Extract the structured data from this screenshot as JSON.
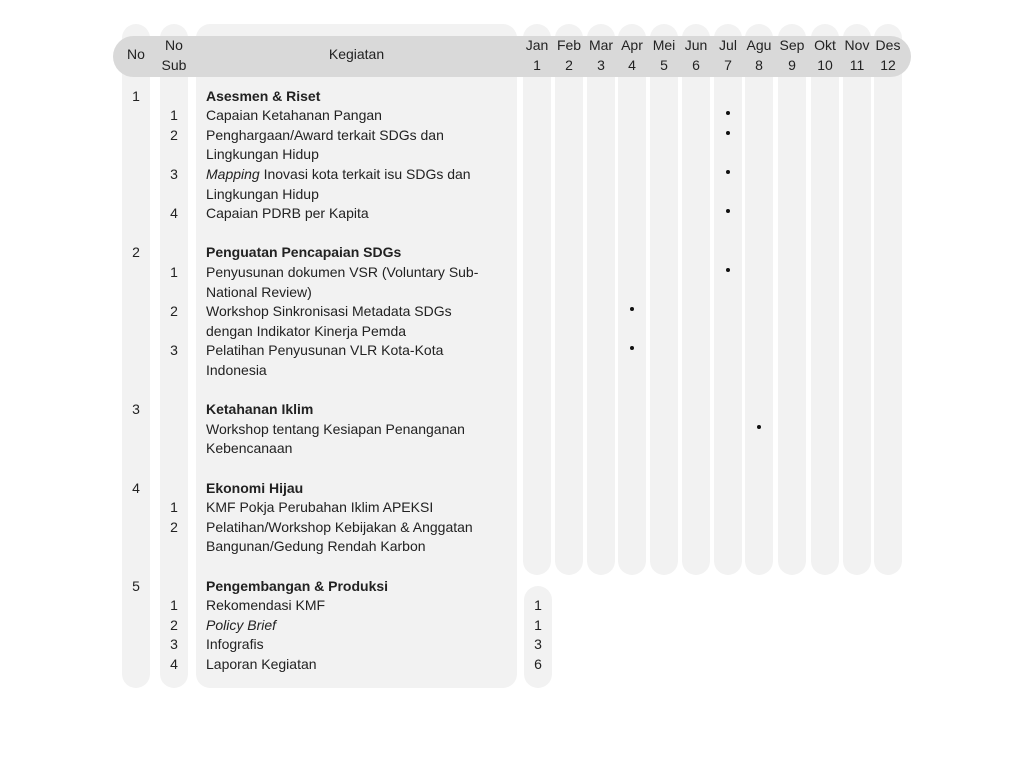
{
  "header": {
    "no": "No",
    "no_sub": [
      "No",
      "Sub"
    ],
    "kegiatan": "Kegiatan",
    "months": [
      {
        "name": "Jan",
        "num": "1"
      },
      {
        "name": "Feb",
        "num": "2"
      },
      {
        "name": "Mar",
        "num": "3"
      },
      {
        "name": "Apr",
        "num": "4"
      },
      {
        "name": "Mei",
        "num": "5"
      },
      {
        "name": "Jun",
        "num": "6"
      },
      {
        "name": "Jul",
        "num": "7"
      },
      {
        "name": "Agu",
        "num": "8"
      },
      {
        "name": "Sep",
        "num": "9"
      },
      {
        "name": "Okt",
        "num": "10"
      },
      {
        "name": "Nov",
        "num": "11"
      },
      {
        "name": "Des",
        "num": "12"
      }
    ]
  },
  "sections": [
    {
      "no": "1",
      "title": "Asesmen & Riset",
      "items": [
        {
          "sub": "1",
          "lines": [
            {
              "text": "Capaian Ketahanan Pangan"
            }
          ],
          "months": [
            7
          ]
        },
        {
          "sub": "2",
          "lines": [
            {
              "text": "Penghargaan/Award terkait SDGs dan"
            },
            {
              "text": "Lingkungan Hidup"
            }
          ],
          "months": [
            7
          ]
        },
        {
          "sub": "3",
          "lines": [
            {
              "italic": "Mapping",
              "text": " Inovasi kota terkait isu SDGs dan"
            },
            {
              "text": "Lingkungan Hidup"
            }
          ],
          "months": [
            7
          ]
        },
        {
          "sub": "4",
          "lines": [
            {
              "text": "Capaian PDRB per Kapita"
            }
          ],
          "months": [
            7
          ]
        }
      ]
    },
    {
      "no": "2",
      "title": "Penguatan Pencapaian SDGs",
      "items": [
        {
          "sub": "1",
          "lines": [
            {
              "text": "Penyusunan dokumen VSR (Voluntary Sub-"
            },
            {
              "text": "National Review)"
            }
          ],
          "months": [
            7
          ]
        },
        {
          "sub": "2",
          "lines": [
            {
              "text": "Workshop Sinkronisasi Metadata SDGs"
            },
            {
              "text": "dengan Indikator Kinerja Pemda"
            }
          ],
          "months": [
            4
          ]
        },
        {
          "sub": "3",
          "lines": [
            {
              "text": "Pelatihan Penyusunan VLR Kota-Kota"
            },
            {
              "text": "Indonesia"
            }
          ],
          "months": [
            4
          ]
        }
      ]
    },
    {
      "no": "3",
      "title": "Ketahanan Iklim",
      "items": [
        {
          "sub": "",
          "lines": [
            {
              "text": "Workshop tentang Kesiapan Penanganan"
            },
            {
              "text": "Kebencanaan"
            }
          ],
          "months": [
            8
          ]
        }
      ]
    },
    {
      "no": "4",
      "title": "Ekonomi Hijau",
      "items": [
        {
          "sub": "1",
          "lines": [
            {
              "text": "KMF Pokja Perubahan Iklim APEKSI"
            }
          ],
          "months": []
        },
        {
          "sub": "2",
          "lines": [
            {
              "text": "Pelatihan/Workshop Kebijakan & Anggatan"
            },
            {
              "text": "Bangunan/Gedung Rendah Karbon"
            }
          ],
          "months": []
        }
      ]
    },
    {
      "no": "5",
      "title": "Pengembangan & Produksi",
      "items": [
        {
          "sub": "1",
          "lines": [
            {
              "text": "Rekomendasi KMF"
            }
          ],
          "months": [],
          "jan_value": "1"
        },
        {
          "sub": "2",
          "lines": [
            {
              "italic": "Policy Brief",
              "text": ""
            }
          ],
          "months": [],
          "jan_value": "1"
        },
        {
          "sub": "3",
          "lines": [
            {
              "text": "Infografis"
            }
          ],
          "months": [],
          "jan_value": "3"
        },
        {
          "sub": "4",
          "lines": [
            {
              "text": "Laporan Kegiatan"
            }
          ],
          "months": [],
          "jan_value": "6"
        }
      ]
    }
  ]
}
